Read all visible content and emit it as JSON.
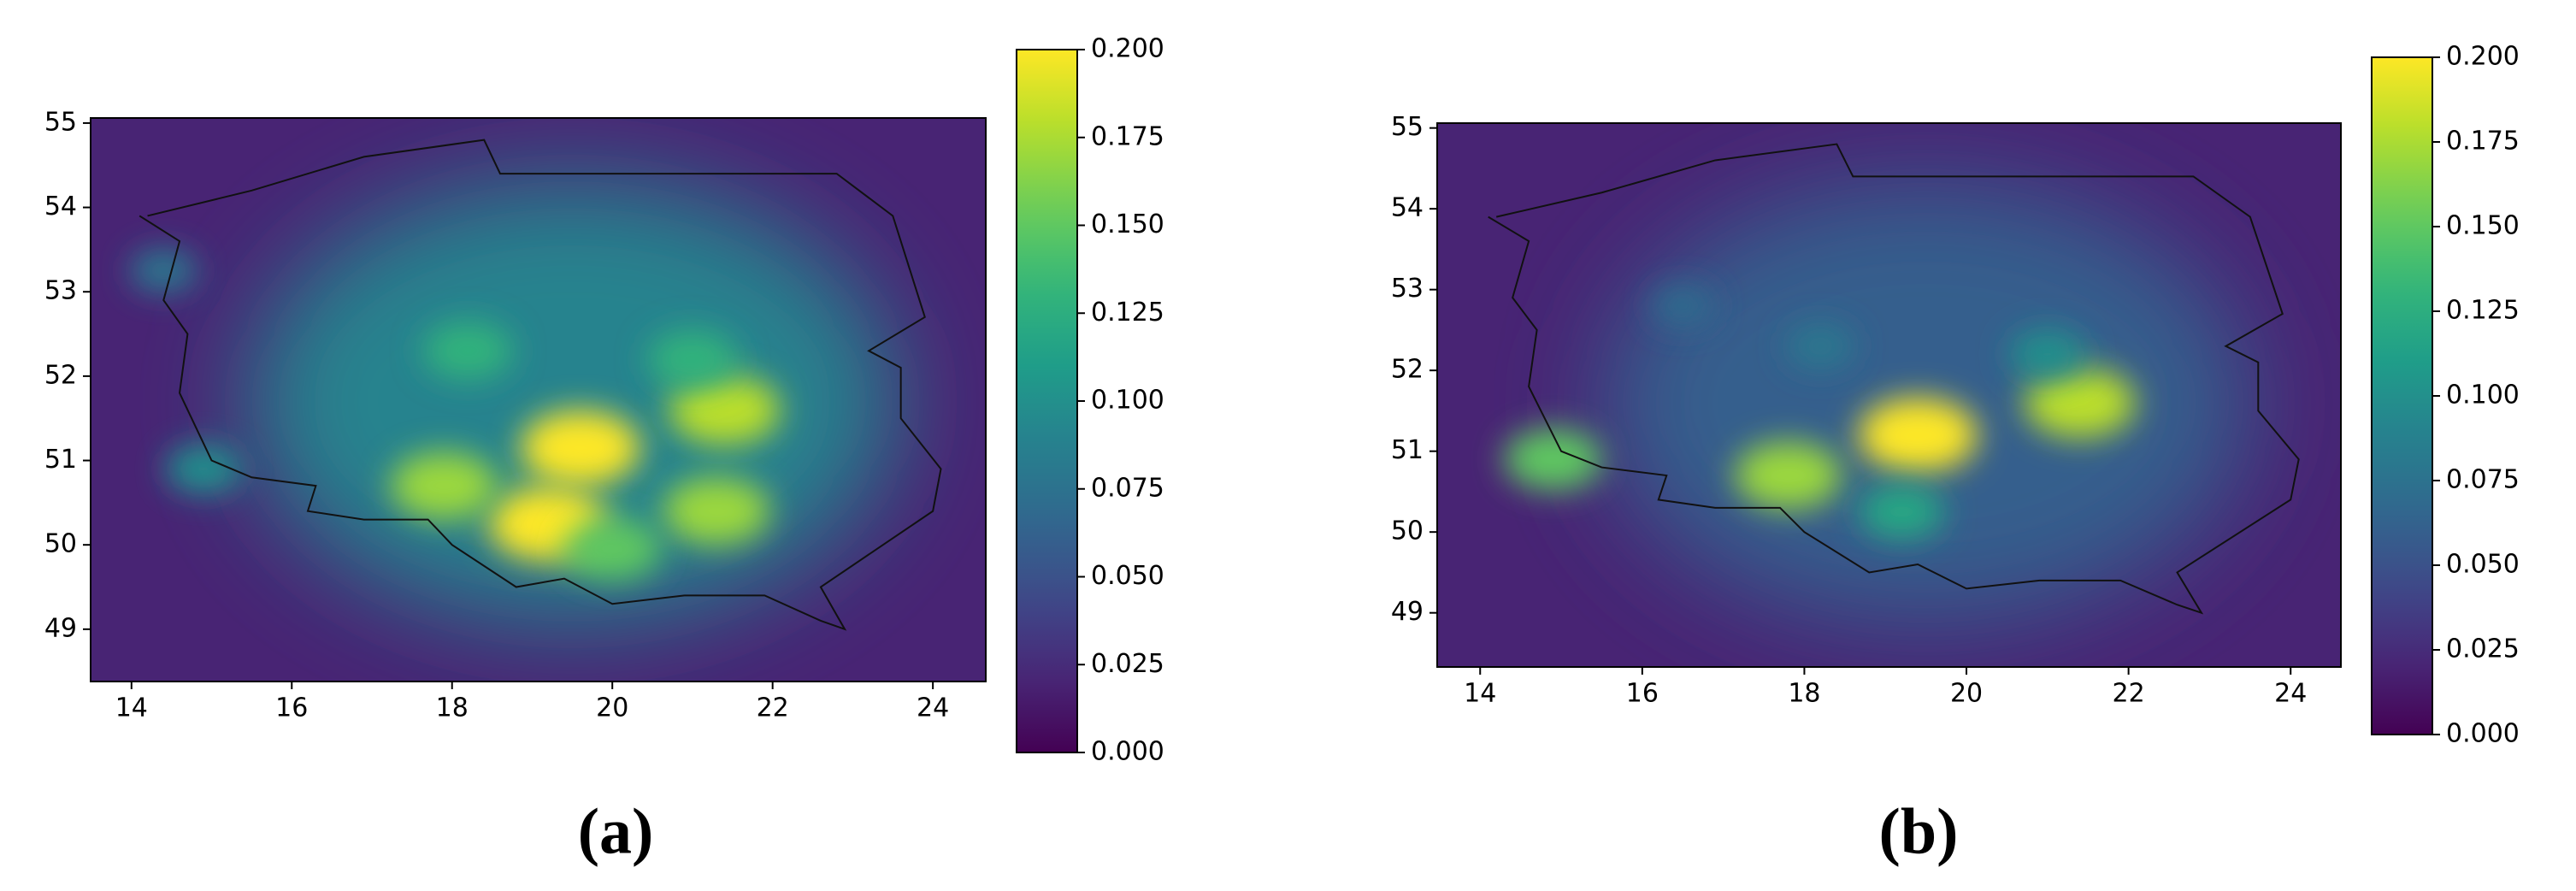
{
  "chart_data": [
    {
      "type": "heatmap",
      "label": "(a)",
      "colormap": "viridis",
      "xlim": [
        13.49,
        24.66
      ],
      "ylim": [
        48.38,
        55.06
      ],
      "xticks": [
        14,
        16,
        18,
        20,
        22,
        24
      ],
      "yticks": [
        49,
        50,
        51,
        52,
        53,
        54,
        55
      ],
      "clim": [
        0,
        0.2
      ],
      "cticks": [
        {
          "value": 0,
          "label": "0.000"
        },
        {
          "value": 0.025,
          "label": "0.025"
        },
        {
          "value": 0.05,
          "label": "0.050"
        },
        {
          "value": 0.075,
          "label": "0.075"
        },
        {
          "value": 0.1,
          "label": "0.100"
        },
        {
          "value": 0.125,
          "label": "0.125"
        },
        {
          "value": 0.15,
          "label": "0.150"
        },
        {
          "value": 0.175,
          "label": "0.175"
        },
        {
          "value": 0.2,
          "label": "0.200"
        }
      ],
      "x": [
        19.5,
        19.6,
        19.2,
        21.4,
        21.3,
        17.9,
        18.2,
        21.0,
        20.0,
        14.9,
        14.4
      ],
      "y": [
        51.7,
        51.15,
        50.25,
        51.6,
        50.4,
        50.7,
        52.3,
        52.2,
        49.95,
        50.9,
        53.25
      ],
      "values": [
        0.09,
        0.2,
        0.2,
        0.18,
        0.17,
        0.17,
        0.13,
        0.13,
        0.15,
        0.1,
        0.08
      ]
    },
    {
      "type": "heatmap",
      "label": "(b)",
      "colormap": "viridis",
      "xlim": [
        13.47,
        24.62
      ],
      "ylim": [
        48.33,
        55.06
      ],
      "xticks": [
        14,
        16,
        18,
        20,
        22,
        24
      ],
      "yticks": [
        49,
        50,
        51,
        52,
        53,
        54,
        55
      ],
      "clim": [
        0,
        0.2
      ],
      "cticks": [
        {
          "value": 0,
          "label": "0.000"
        },
        {
          "value": 0.025,
          "label": "0.025"
        },
        {
          "value": 0.05,
          "label": "0.050"
        },
        {
          "value": 0.075,
          "label": "0.075"
        },
        {
          "value": 0.1,
          "label": "0.100"
        },
        {
          "value": 0.125,
          "label": "0.125"
        },
        {
          "value": 0.15,
          "label": "0.150"
        },
        {
          "value": 0.175,
          "label": "0.175"
        },
        {
          "value": 0.2,
          "label": "0.200"
        }
      ],
      "x": [
        19.5,
        19.4,
        21.4,
        17.8,
        19.2,
        14.9,
        21.0,
        18.2,
        16.5
      ],
      "y": [
        51.6,
        51.2,
        51.6,
        50.7,
        50.25,
        50.9,
        52.2,
        52.3,
        52.8
      ],
      "values": [
        0.06,
        0.2,
        0.18,
        0.17,
        0.12,
        0.15,
        0.1,
        0.08,
        0.07
      ]
    }
  ]
}
